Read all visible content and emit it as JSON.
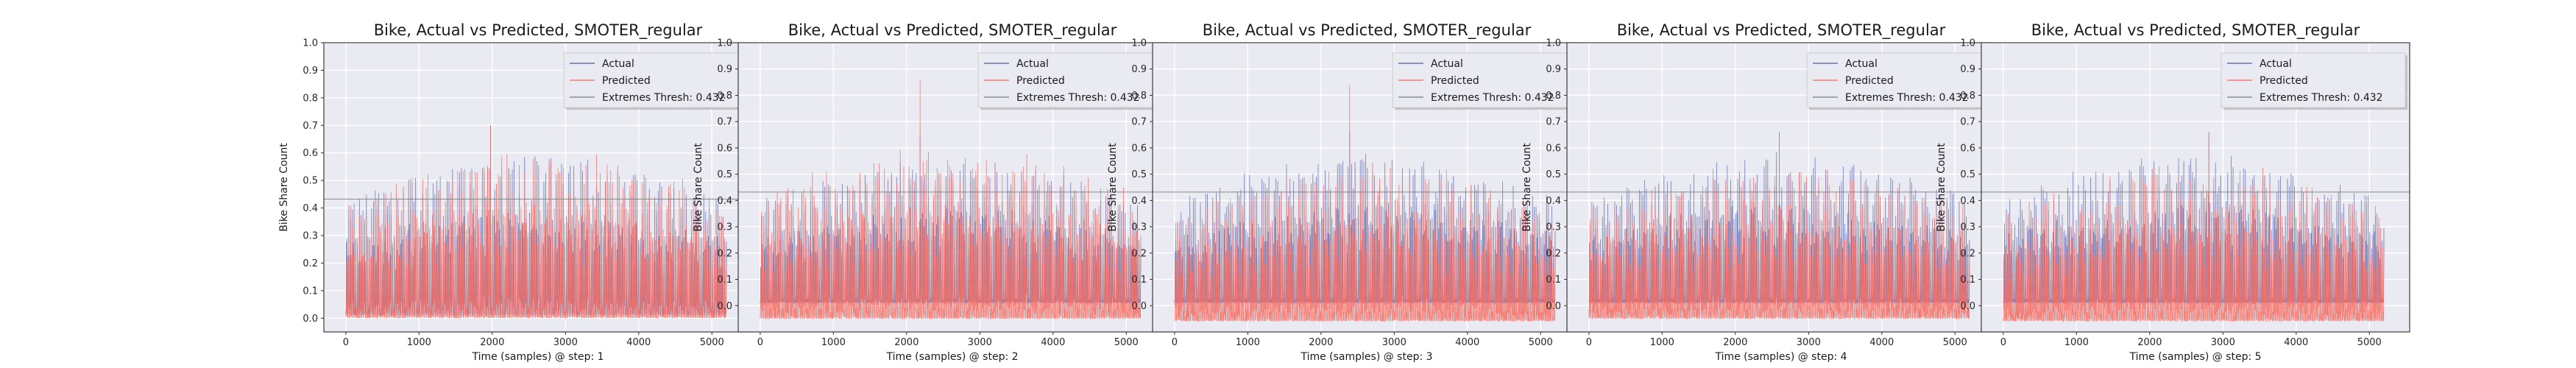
{
  "figure": {
    "background": "#ffffff",
    "plot_background": "#eaeaf2",
    "grid_color": "#ffffff"
  },
  "chart_data": [
    {
      "type": "line",
      "title": "Bike, Actual vs Predicted, SMOTER_regular",
      "xlabel": "Time (samples) @ step: 1",
      "ylabel": "Bike Share Count",
      "xlim": [
        -300,
        5550
      ],
      "ylim": [
        -0.05,
        1.0
      ],
      "xticks": [
        0,
        1000,
        2000,
        3000,
        4000,
        5000
      ],
      "xtick_labels": [
        "0",
        "1000",
        "2000",
        "3000",
        "4000",
        "5000"
      ],
      "yticks": [
        0.0,
        0.1,
        0.2,
        0.3,
        0.4,
        0.5,
        0.6,
        0.7,
        0.8,
        0.9,
        1.0
      ],
      "ytick_labels": [
        "0.0",
        "0.1",
        "0.2",
        "0.3",
        "0.4",
        "0.5",
        "0.6",
        "0.7",
        "0.8",
        "0.9",
        "1.0"
      ],
      "grid": true,
      "legend_position": "top-right",
      "series": [
        {
          "name": "Actual",
          "color": "#4c5aa8",
          "samples": 5200,
          "min": 0.01,
          "typical_peak": 0.62,
          "max": 0.7
        },
        {
          "name": "Predicted",
          "color": "#f4695e",
          "samples": 5200,
          "min": 0.0,
          "typical_peak": 0.62,
          "max": 0.7
        },
        {
          "name": "Extremes Thresh: 0.432",
          "color": "#7a7a7a",
          "type": "hline",
          "y": 0.432
        }
      ]
    },
    {
      "type": "line",
      "title": "Bike, Actual vs Predicted, SMOTER_regular",
      "xlabel": "Time (samples) @ step: 2",
      "ylabel": "Bike Share Count",
      "xlim": [
        -300,
        5550
      ],
      "ylim": [
        -0.1,
        1.0
      ],
      "xticks": [
        0,
        1000,
        2000,
        3000,
        4000,
        5000
      ],
      "xtick_labels": [
        "0",
        "1000",
        "2000",
        "3000",
        "4000",
        "5000"
      ],
      "yticks": [
        0.0,
        0.1,
        0.2,
        0.3,
        0.4,
        0.5,
        0.6,
        0.7,
        0.8,
        0.9,
        1.0
      ],
      "ytick_labels": [
        "0.0",
        "0.1",
        "0.2",
        "0.3",
        "0.4",
        "0.5",
        "0.6",
        "0.7",
        "0.8",
        "0.9",
        "1.0"
      ],
      "grid": true,
      "legend_position": "top-right",
      "series": [
        {
          "name": "Actual",
          "color": "#4c5aa8",
          "samples": 5200,
          "min": 0.01,
          "typical_peak": 0.58,
          "max": 0.65
        },
        {
          "name": "Predicted",
          "color": "#f4695e",
          "samples": 5200,
          "min": -0.05,
          "typical_peak": 0.62,
          "max": 0.86
        },
        {
          "name": "Extremes Thresh: 0.432",
          "color": "#7a7a7a",
          "type": "hline",
          "y": 0.432
        }
      ]
    },
    {
      "type": "line",
      "title": "Bike, Actual vs Predicted, SMOTER_regular",
      "xlabel": "Time (samples) @ step: 3",
      "ylabel": "Bike Share Count",
      "xlim": [
        -300,
        5550
      ],
      "ylim": [
        -0.1,
        1.0
      ],
      "xticks": [
        0,
        1000,
        2000,
        3000,
        4000,
        5000
      ],
      "xtick_labels": [
        "0",
        "1000",
        "2000",
        "3000",
        "4000",
        "5000"
      ],
      "yticks": [
        0.0,
        0.1,
        0.2,
        0.3,
        0.4,
        0.5,
        0.6,
        0.7,
        0.8,
        0.9,
        1.0
      ],
      "ytick_labels": [
        "0.0",
        "0.1",
        "0.2",
        "0.3",
        "0.4",
        "0.5",
        "0.6",
        "0.7",
        "0.8",
        "0.9",
        "1.0"
      ],
      "grid": true,
      "legend_position": "top-right",
      "series": [
        {
          "name": "Actual",
          "color": "#4c5aa8",
          "samples": 5200,
          "min": 0.01,
          "typical_peak": 0.6,
          "max": 0.66
        },
        {
          "name": "Predicted",
          "color": "#f4695e",
          "samples": 5200,
          "min": -0.06,
          "typical_peak": 0.55,
          "max": 0.84
        },
        {
          "name": "Extremes Thresh: 0.432",
          "color": "#7a7a7a",
          "type": "hline",
          "y": 0.432
        }
      ]
    },
    {
      "type": "line",
      "title": "Bike, Actual vs Predicted, SMOTER_regular",
      "xlabel": "Time (samples) @ step: 4",
      "ylabel": "Bike Share Count",
      "xlim": [
        -300,
        5550
      ],
      "ylim": [
        -0.1,
        1.0
      ],
      "xticks": [
        0,
        1000,
        2000,
        3000,
        4000,
        5000
      ],
      "xtick_labels": [
        "0",
        "1000",
        "2000",
        "3000",
        "4000",
        "5000"
      ],
      "yticks": [
        0.0,
        0.1,
        0.2,
        0.3,
        0.4,
        0.5,
        0.6,
        0.7,
        0.8,
        0.9,
        1.0
      ],
      "ytick_labels": [
        "0.0",
        "0.1",
        "0.2",
        "0.3",
        "0.4",
        "0.5",
        "0.6",
        "0.7",
        "0.8",
        "0.9",
        "1.0"
      ],
      "grid": true,
      "legend_position": "top-right",
      "series": [
        {
          "name": "Actual",
          "color": "#4c5aa8",
          "samples": 5200,
          "min": 0.01,
          "typical_peak": 0.6,
          "max": 0.66
        },
        {
          "name": "Predicted",
          "color": "#f4695e",
          "samples": 5200,
          "min": -0.05,
          "typical_peak": 0.55,
          "max": 0.62
        },
        {
          "name": "Extremes Thresh: 0.432",
          "color": "#7a7a7a",
          "type": "hline",
          "y": 0.432
        }
      ]
    },
    {
      "type": "line",
      "title": "Bike, Actual vs Predicted, SMOTER_regular",
      "xlabel": "Time (samples) @ step: 5",
      "ylabel": "Bike Share Count",
      "xlim": [
        -300,
        5550
      ],
      "ylim": [
        -0.1,
        1.0
      ],
      "xticks": [
        0,
        1000,
        2000,
        3000,
        4000,
        5000
      ],
      "xtick_labels": [
        "0",
        "1000",
        "2000",
        "3000",
        "4000",
        "5000"
      ],
      "yticks": [
        0.0,
        0.1,
        0.2,
        0.3,
        0.4,
        0.5,
        0.6,
        0.7,
        0.8,
        0.9,
        1.0
      ],
      "ytick_labels": [
        "0.0",
        "0.1",
        "0.2",
        "0.3",
        "0.4",
        "0.5",
        "0.6",
        "0.7",
        "0.8",
        "0.9",
        "1.0"
      ],
      "grid": true,
      "legend_position": "top-right",
      "series": [
        {
          "name": "Actual",
          "color": "#4c5aa8",
          "samples": 5200,
          "min": 0.01,
          "typical_peak": 0.6,
          "max": 0.66
        },
        {
          "name": "Predicted",
          "color": "#f4695e",
          "samples": 5200,
          "min": -0.06,
          "typical_peak": 0.55,
          "max": 0.66
        },
        {
          "name": "Extremes Thresh: 0.432",
          "color": "#7a7a7a",
          "type": "hline",
          "y": 0.432
        }
      ]
    }
  ]
}
